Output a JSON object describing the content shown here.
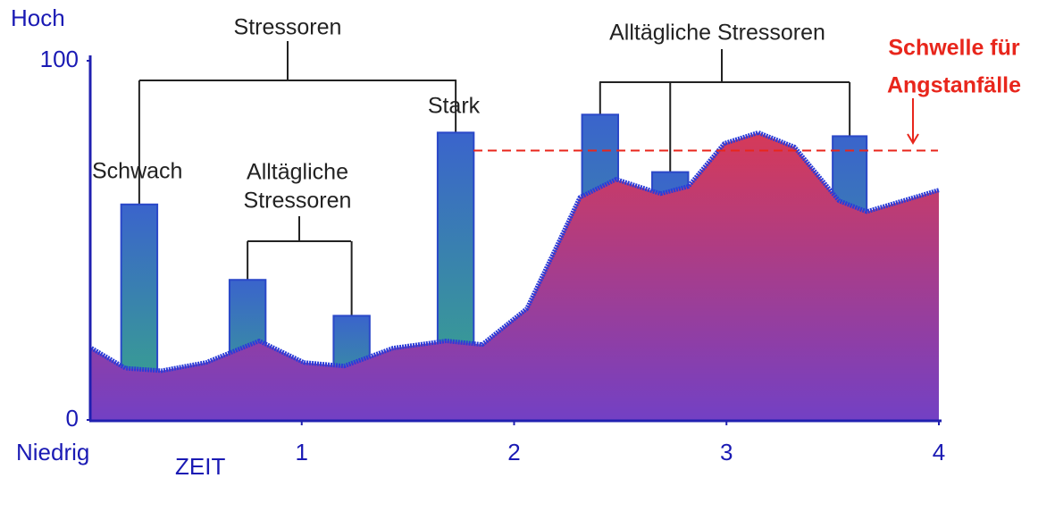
{
  "chart_data": {
    "type": "area",
    "x_label": "ZEIT",
    "y_top_label": "Hoch",
    "y_bottom_label": "Niedrig",
    "xlim": [
      0,
      4
    ],
    "xticks": [
      1,
      2,
      3,
      4
    ],
    "ylim": [
      0,
      100
    ],
    "yticks": [
      0,
      100
    ],
    "x": [
      0.01,
      0.17,
      0.34,
      0.55,
      0.8,
      1.01,
      1.2,
      1.43,
      1.68,
      1.85,
      2.06,
      2.19,
      2.31,
      2.48,
      2.69,
      2.82,
      2.99,
      3.15,
      3.32,
      3.53,
      3.66,
      3.83,
      4.0
    ],
    "values": [
      20,
      14.4,
      13.7,
      16,
      22,
      16,
      15,
      20,
      22,
      21,
      31,
      47,
      62,
      67,
      63,
      65,
      77,
      80,
      76,
      61,
      58,
      61,
      64
    ],
    "bars": {
      "starts": [
        0.15,
        0.66,
        1.15,
        1.64,
        2.32,
        2.65,
        3.5
      ],
      "ends": [
        0.32,
        0.83,
        1.32,
        1.81,
        2.49,
        2.82,
        3.66
      ],
      "values": [
        60,
        39,
        29,
        80,
        85,
        69,
        79
      ]
    },
    "threshold": 75,
    "threshold_label": [
      "Schwelle für",
      "Angstanfälle"
    ],
    "annotations": {
      "stressoren": "Stressoren",
      "schwach": "Schwach",
      "stark": "Stark",
      "alltaegliche_1": [
        "Alltägliche",
        "Stressoren"
      ],
      "alltaegliche_2": "Alltägliche Stressoren"
    }
  }
}
